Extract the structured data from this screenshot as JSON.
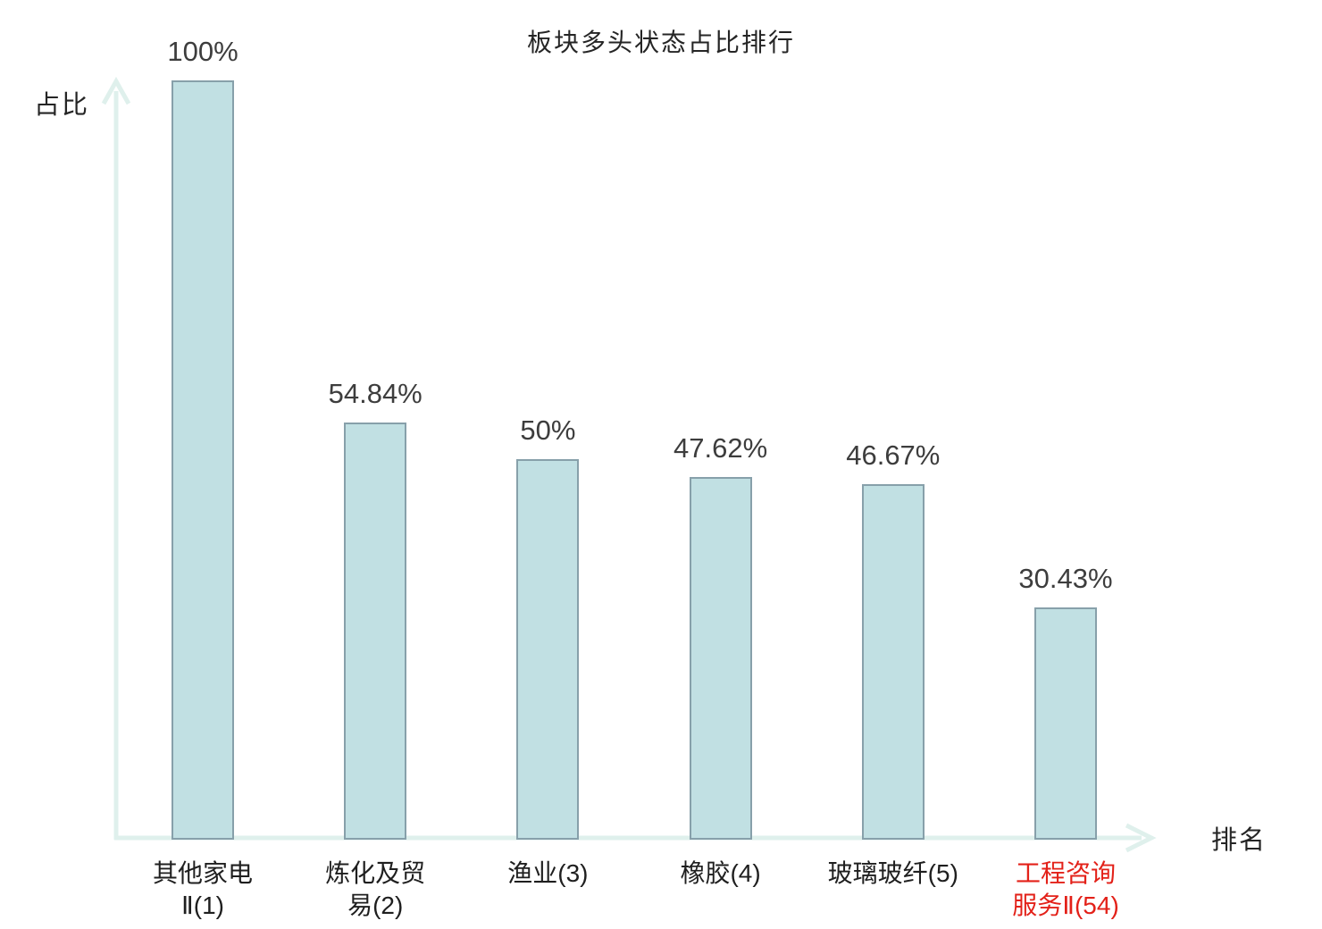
{
  "title": "板块多头状态占比排行",
  "chart_data": {
    "type": "bar",
    "title": "板块多头状态占比排行",
    "xlabel": "排名",
    "ylabel": "占比",
    "ylim": [
      0,
      100
    ],
    "grid": false,
    "legend": "none",
    "categories": [
      "其他家电Ⅱ(1)",
      "炼化及贸易(2)",
      "渔业(3)",
      "橡胶(4)",
      "玻璃玻纤(5)",
      "工程咨询服务Ⅱ(54)"
    ],
    "category_lines": [
      [
        "其他家电",
        "Ⅱ(1)"
      ],
      [
        "炼化及贸",
        "易(2)"
      ],
      [
        "渔业(3)"
      ],
      [
        "橡胶(4)"
      ],
      [
        "玻璃玻纤(5)"
      ],
      [
        "工程咨询",
        "服务Ⅱ(54)"
      ]
    ],
    "values": [
      100,
      54.84,
      50,
      47.62,
      46.67,
      30.43
    ],
    "value_labels": [
      "100%",
      "54.84%",
      "50%",
      "47.62%",
      "46.67%",
      "30.43%"
    ],
    "highlight_index": 5,
    "colors": {
      "bar_fill": "#c1e0e3",
      "bar_border": "#87a0aa",
      "axis": "#dff0ec",
      "text": "#1f1f1f",
      "value_text": "#3d3d3d",
      "highlight_text": "#e32119"
    }
  }
}
